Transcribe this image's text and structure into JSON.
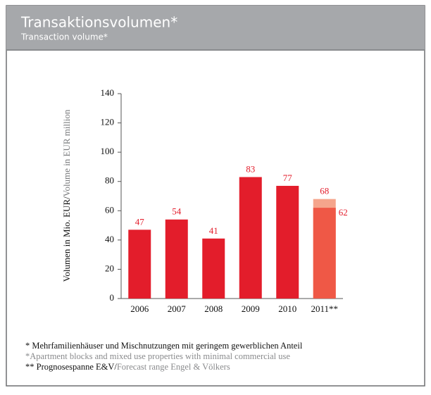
{
  "header": {
    "title": "Transaktionsvolumen*",
    "subtitle": "Transaction volume*"
  },
  "chart_data": {
    "type": "bar",
    "y_label": {
      "primary": "Volumen in Mio. EUR/",
      "secondary": "Volume in EUR million"
    },
    "categories": [
      "2006",
      "2007",
      "2008",
      "2009",
      "2010",
      "2011**"
    ],
    "values": [
      47,
      54,
      41,
      83,
      77,
      62
    ],
    "colors": [
      "#e31d2b",
      "#e31d2b",
      "#e31d2b",
      "#e31d2b",
      "#e31d2b",
      "#ef5846"
    ],
    "upper_values": [
      null,
      null,
      null,
      null,
      null,
      68
    ],
    "upper_color": "#f5a58c",
    "label_color": "#e31d2b",
    "ylim": [
      0,
      140
    ],
    "yticks": [
      0,
      20,
      40,
      60,
      80,
      100,
      120,
      140
    ],
    "grid": false
  },
  "footnotes": [
    {
      "primary": "* Mehrfamilienhäuser und Mischnutzungen mit geringem gewerblichen Anteil"
    },
    {
      "secondary": "*Apartment blocks and mixed use properties with minimal commercial use"
    },
    {
      "primary": "** Prognosespanne E&V/",
      "secondary": "Forecast range Engel & Völkers"
    }
  ]
}
